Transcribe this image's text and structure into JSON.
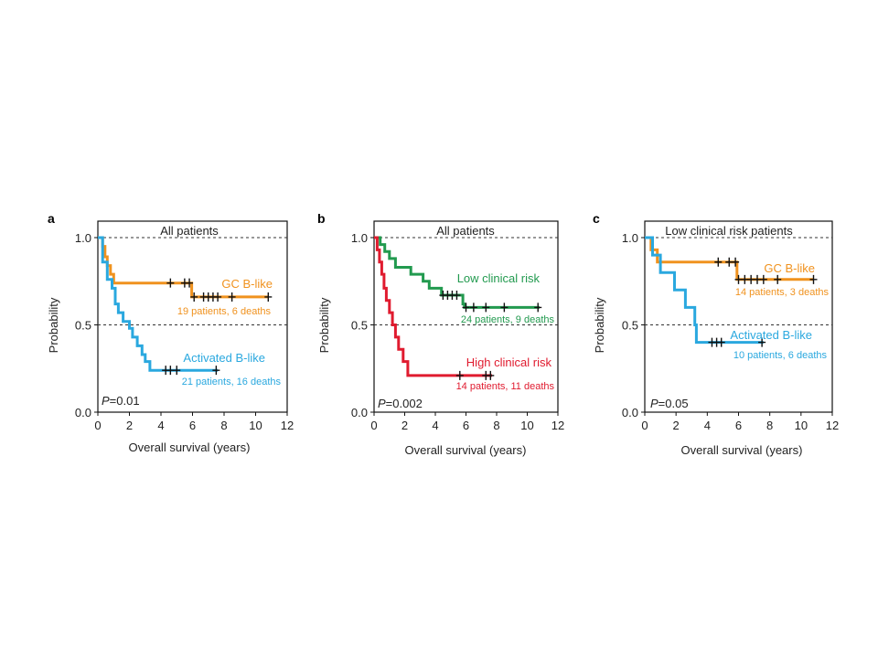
{
  "chart_data": [
    {
      "type": "line",
      "panel": "a",
      "title": "All patients",
      "xlabel": "Overall survival (years)",
      "ylabel": "Probability",
      "xlim": [
        0,
        12
      ],
      "ylim": [
        0,
        1
      ],
      "xticks": [
        0,
        2,
        4,
        6,
        8,
        10,
        12
      ],
      "yticks": [
        0.0,
        0.5,
        1.0
      ],
      "ytick_labels": [
        "0.0",
        "0.5",
        "1.0"
      ],
      "reference_lines": [
        0.5,
        1.0
      ],
      "p_value_label": "P",
      "p_value_text": "=0.01",
      "series": [
        {
          "name": "GC B-like",
          "count_label": "19 patients, 6 deaths",
          "color": "#f0921e",
          "steps": [
            [
              0,
              1.0
            ],
            [
              0.3,
              0.95
            ],
            [
              0.45,
              0.89
            ],
            [
              0.6,
              0.84
            ],
            [
              0.8,
              0.79
            ],
            [
              1.0,
              0.74
            ],
            [
              5.95,
              0.66
            ],
            [
              10.8,
              0.66
            ]
          ],
          "censored": [
            [
              4.6,
              0.74
            ],
            [
              5.5,
              0.74
            ],
            [
              5.8,
              0.74
            ],
            [
              6.1,
              0.66
            ],
            [
              6.7,
              0.66
            ],
            [
              7.0,
              0.66
            ],
            [
              7.3,
              0.66
            ],
            [
              7.6,
              0.66
            ],
            [
              8.5,
              0.66
            ],
            [
              10.8,
              0.66
            ]
          ]
        },
        {
          "name": "Activated B-like",
          "count_label": "21 patients, 16 deaths",
          "color": "#2aa8df",
          "steps": [
            [
              0,
              1.0
            ],
            [
              0.3,
              0.86
            ],
            [
              0.6,
              0.76
            ],
            [
              0.9,
              0.71
            ],
            [
              1.1,
              0.62
            ],
            [
              1.3,
              0.57
            ],
            [
              1.6,
              0.52
            ],
            [
              2.0,
              0.48
            ],
            [
              2.2,
              0.43
            ],
            [
              2.5,
              0.38
            ],
            [
              2.8,
              0.33
            ],
            [
              3.0,
              0.29
            ],
            [
              3.3,
              0.24
            ],
            [
              7.6,
              0.24
            ]
          ],
          "censored": [
            [
              4.3,
              0.24
            ],
            [
              4.6,
              0.24
            ],
            [
              5.0,
              0.24
            ],
            [
              7.5,
              0.24
            ]
          ]
        }
      ]
    },
    {
      "type": "line",
      "panel": "b",
      "title": "All patients",
      "xlabel": "Overall survival (years)",
      "ylabel": "Probability",
      "xlim": [
        0,
        12
      ],
      "ylim": [
        0,
        1
      ],
      "xticks": [
        0,
        2,
        4,
        6,
        8,
        10,
        12
      ],
      "yticks": [
        0.0,
        0.5,
        1.0
      ],
      "ytick_labels": [
        "0.0",
        "0.5",
        "1.0"
      ],
      "reference_lines": [
        0.5,
        1.0
      ],
      "p_value_label": "P",
      "p_value_text": "=0.002",
      "series": [
        {
          "name": "Low clinical risk",
          "count_label": "24 patients, 9 deaths",
          "color": "#229a4f",
          "steps": [
            [
              0,
              1.0
            ],
            [
              0.4,
              0.96
            ],
            [
              0.7,
              0.92
            ],
            [
              1.0,
              0.88
            ],
            [
              1.4,
              0.83
            ],
            [
              2.4,
              0.79
            ],
            [
              3.2,
              0.75
            ],
            [
              3.6,
              0.71
            ],
            [
              4.4,
              0.67
            ],
            [
              5.8,
              0.62
            ],
            [
              5.9,
              0.6
            ],
            [
              10.8,
              0.6
            ]
          ],
          "censored": [
            [
              4.5,
              0.67
            ],
            [
              4.8,
              0.67
            ],
            [
              5.1,
              0.67
            ],
            [
              5.4,
              0.67
            ],
            [
              6.0,
              0.6
            ],
            [
              6.5,
              0.6
            ],
            [
              7.3,
              0.6
            ],
            [
              8.5,
              0.6
            ],
            [
              10.7,
              0.6
            ]
          ]
        },
        {
          "name": "High clinical risk",
          "count_label": "14 patients, 11 deaths",
          "color": "#e01b2f",
          "steps": [
            [
              0,
              1.0
            ],
            [
              0.2,
              0.93
            ],
            [
              0.35,
              0.86
            ],
            [
              0.5,
              0.79
            ],
            [
              0.65,
              0.71
            ],
            [
              0.8,
              0.64
            ],
            [
              1.0,
              0.57
            ],
            [
              1.2,
              0.5
            ],
            [
              1.4,
              0.43
            ],
            [
              1.6,
              0.36
            ],
            [
              1.9,
              0.29
            ],
            [
              2.2,
              0.21
            ],
            [
              7.7,
              0.21
            ]
          ],
          "censored": [
            [
              5.6,
              0.21
            ],
            [
              7.3,
              0.21
            ],
            [
              7.6,
              0.21
            ]
          ]
        }
      ]
    },
    {
      "type": "line",
      "panel": "c",
      "title": "Low clinical risk patients",
      "xlabel": "Overall survival (years)",
      "ylabel": "Probability",
      "xlim": [
        0,
        12
      ],
      "ylim": [
        0,
        1
      ],
      "xticks": [
        0,
        2,
        4,
        6,
        8,
        10,
        12
      ],
      "yticks": [
        0.0,
        0.5,
        1.0
      ],
      "ytick_labels": [
        "0.0",
        "0.5",
        "1.0"
      ],
      "reference_lines": [
        0.5,
        1.0
      ],
      "p_value_label": "P",
      "p_value_text": "=0.05",
      "series": [
        {
          "name": "GC B-like",
          "count_label": "14 patients, 3 deaths",
          "color": "#f0921e",
          "steps": [
            [
              0,
              1.0
            ],
            [
              0.4,
              0.93
            ],
            [
              0.8,
              0.86
            ],
            [
              5.9,
              0.76
            ],
            [
              10.8,
              0.76
            ]
          ],
          "censored": [
            [
              4.7,
              0.86
            ],
            [
              5.4,
              0.86
            ],
            [
              5.8,
              0.86
            ],
            [
              6.0,
              0.76
            ],
            [
              6.4,
              0.76
            ],
            [
              6.8,
              0.76
            ],
            [
              7.2,
              0.76
            ],
            [
              7.6,
              0.76
            ],
            [
              8.5,
              0.76
            ],
            [
              10.8,
              0.76
            ]
          ]
        },
        {
          "name": "Activated B-like",
          "count_label": "10 patients, 6 deaths",
          "color": "#2aa8df",
          "steps": [
            [
              0,
              1.0
            ],
            [
              0.5,
              0.9
            ],
            [
              1.0,
              0.8
            ],
            [
              1.9,
              0.7
            ],
            [
              2.6,
              0.6
            ],
            [
              3.2,
              0.5
            ],
            [
              3.3,
              0.4
            ],
            [
              7.6,
              0.4
            ]
          ],
          "censored": [
            [
              4.3,
              0.4
            ],
            [
              4.6,
              0.4
            ],
            [
              4.9,
              0.4
            ],
            [
              7.5,
              0.4
            ]
          ]
        }
      ]
    }
  ]
}
